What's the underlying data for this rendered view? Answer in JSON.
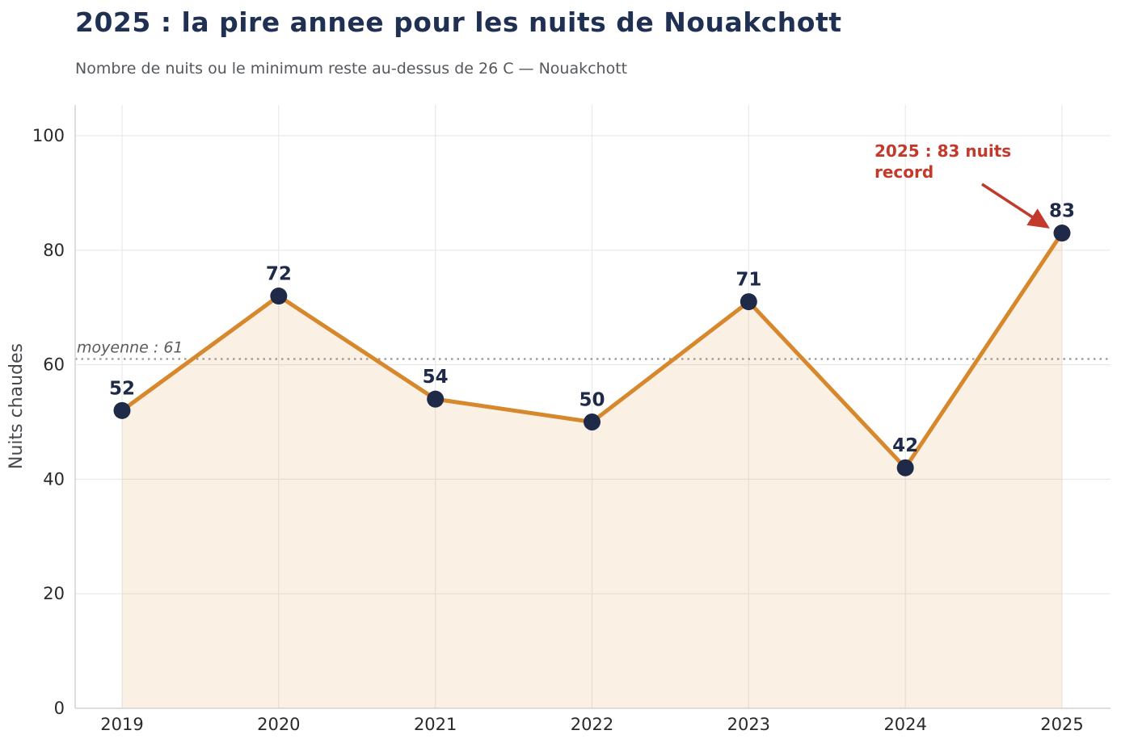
{
  "chart_data": {
    "type": "line",
    "title": "2025 : la pire annee pour les nuits de Nouakchott",
    "subtitle": "Nombre de nuits ou le minimum reste au-dessus de 26 C — Nouakchott",
    "categories": [
      "2019",
      "2020",
      "2021",
      "2022",
      "2023",
      "2024",
      "2025"
    ],
    "series": [
      {
        "name": "Nuits chaudes",
        "values": [
          52,
          72,
          54,
          50,
          71,
          42,
          83
        ]
      }
    ],
    "point_labels": [
      "52",
      "72",
      "54",
      "50",
      "71",
      "42",
      "83"
    ],
    "xlabel": "",
    "ylabel": "Nuits chaudes",
    "ylim": [
      0,
      100
    ],
    "yticks": [
      0,
      20,
      40,
      60,
      80,
      100
    ],
    "grid": true,
    "legend_position": "none",
    "mean_line": {
      "value": 61,
      "label": "moyenne : 61"
    },
    "annotation": {
      "line1": "2025 : 83 nuits",
      "line2": "record",
      "target_category": "2025",
      "target_value": 83
    },
    "colors": {
      "line": "#d8882c",
      "fill": "rgba(216,136,44,0.13)",
      "marker": "#1e2a48",
      "point_label": "#1e2a48",
      "title": "#1f3052",
      "subtitle": "#55585c",
      "annotation": "#c3392b",
      "mean_line": "#969696",
      "mean_label": "#5a5a5f",
      "grid": "#e9e9e9",
      "spine": "#d4d4d4",
      "tick_label": "#2a2a2a",
      "axis_label": "#47474c"
    }
  }
}
